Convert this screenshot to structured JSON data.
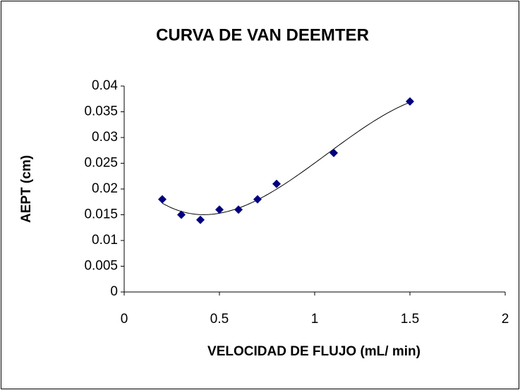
{
  "chart_data": {
    "type": "scatter",
    "title": "CURVA DE VAN DEEMTER",
    "x_label": "VELOCIDAD DE FLUJO (mL/ min)",
    "y_label": "AEPT (cm)",
    "x": [
      0.2,
      0.3,
      0.4,
      0.5,
      0.6,
      0.7,
      0.8,
      1.1,
      1.5
    ],
    "values": [
      0.018,
      0.015,
      0.014,
      0.016,
      0.016,
      0.018,
      0.021,
      0.027,
      0.037
    ],
    "color": "#000080",
    "trendline": true,
    "xlim": [
      0,
      2
    ],
    "xticks": [
      0,
      0.5,
      1,
      1.5,
      2
    ],
    "ylim": [
      0,
      0.04
    ],
    "yticks": [
      0,
      0.005,
      0.01,
      0.015,
      0.02,
      0.025,
      0.03,
      0.035,
      0.04
    ]
  }
}
